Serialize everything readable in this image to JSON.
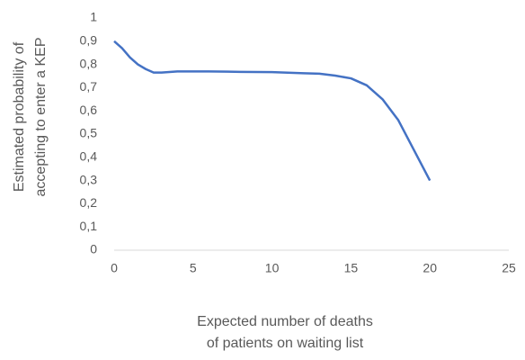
{
  "chart_data": {
    "type": "line",
    "xlabel": [
      "Expected number of deaths",
      "of patients on waiting list"
    ],
    "ylabel": [
      "Estimated probability of",
      "accepting to enter a KEP"
    ],
    "x": [
      0,
      0.5,
      1,
      1.5,
      2,
      2.5,
      3,
      4,
      6,
      8,
      10,
      12,
      13,
      14,
      15,
      16,
      17,
      18,
      19,
      20
    ],
    "series": [
      {
        "color": "#4472c4",
        "values": [
          0.9,
          0.87,
          0.83,
          0.8,
          0.78,
          0.765,
          0.765,
          0.77,
          0.77,
          0.768,
          0.767,
          0.762,
          0.76,
          0.752,
          0.74,
          0.71,
          0.65,
          0.56,
          0.43,
          0.3
        ]
      }
    ],
    "xlim": [
      0,
      25
    ],
    "xticks": [
      0,
      5,
      10,
      15,
      20,
      25
    ],
    "ylim": [
      0,
      1
    ],
    "yticks": [
      0,
      {
        "value": 0.1,
        "label": "0,1"
      },
      {
        "value": 0.2,
        "label": "0,2"
      },
      {
        "value": 0.3,
        "label": "0,3"
      },
      {
        "value": 0.4,
        "label": "0,4"
      },
      {
        "value": 0.5,
        "label": "0,5"
      },
      {
        "value": 0.6,
        "label": "0,6"
      },
      {
        "value": 0.7,
        "label": "0,7"
      },
      {
        "value": 0.8,
        "label": "0,8"
      },
      {
        "value": 0.9,
        "label": "0,9"
      },
      1
    ]
  }
}
